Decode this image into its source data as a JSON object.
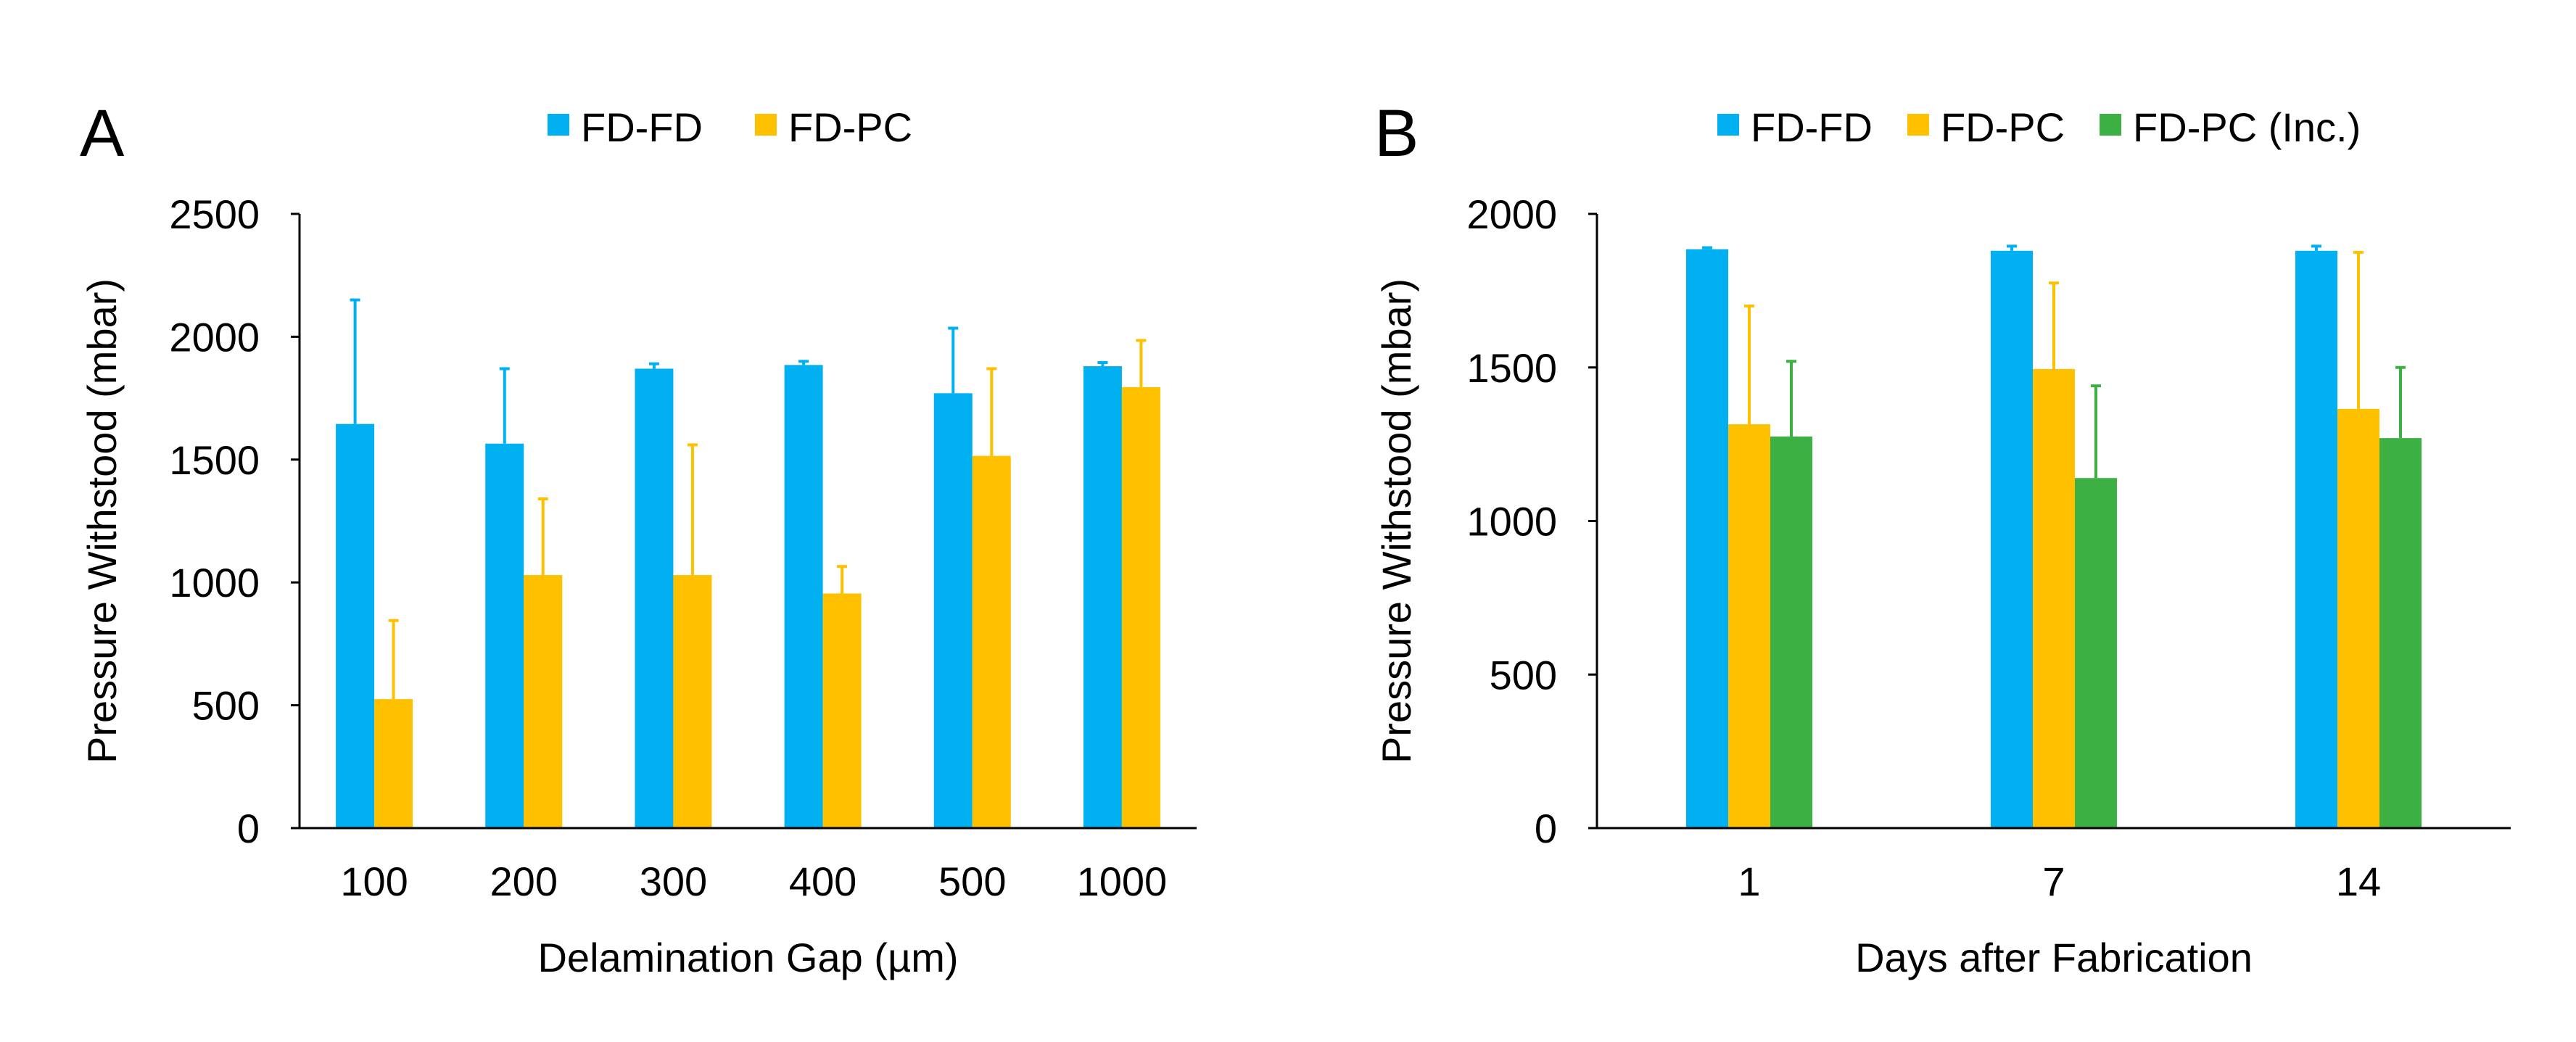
{
  "colors": {
    "FD-FD": "#00B0F0",
    "FD-PC": "#FFC000",
    "FD-PC (Inc.)": "#3CB043",
    "axis": "#000000"
  },
  "chart_data": [
    {
      "panel": "A",
      "type": "bar",
      "title": "",
      "xlabel": "Delamination Gap (µm)",
      "ylabel": "Pressure Withstood (mbar)",
      "ylim": [
        0,
        2500
      ],
      "yticks": [
        0,
        500,
        1000,
        1500,
        2000,
        2500
      ],
      "categories": [
        "100",
        "200",
        "300",
        "400",
        "500",
        "1000"
      ],
      "legend_position": "top-center",
      "grid": false,
      "series": [
        {
          "name": "FD-FD",
          "values": [
            1645,
            1565,
            1870,
            1885,
            1770,
            1880
          ],
          "errors": [
            505,
            305,
            20,
            15,
            265,
            15
          ]
        },
        {
          "name": "FD-PC",
          "values": [
            525,
            1030,
            1030,
            955,
            1515,
            1795
          ],
          "errors": [
            320,
            310,
            530,
            110,
            355,
            190
          ]
        }
      ]
    },
    {
      "panel": "B",
      "type": "bar",
      "title": "",
      "xlabel": "Days after Fabrication",
      "ylabel": "Pressure Withstood (mbar)",
      "ylim": [
        0,
        2000
      ],
      "yticks": [
        0,
        500,
        1000,
        1500,
        2000
      ],
      "categories": [
        "1",
        "7",
        "14"
      ],
      "legend_position": "top-center",
      "grid": false,
      "series": [
        {
          "name": "FD-FD",
          "values": [
            1885,
            1880,
            1880
          ],
          "errors": [
            5,
            15,
            15
          ]
        },
        {
          "name": "FD-PC",
          "values": [
            1315,
            1495,
            1365
          ],
          "errors": [
            385,
            280,
            510
          ]
        },
        {
          "name": "FD-PC (Inc.)",
          "values": [
            1275,
            1140,
            1270
          ],
          "errors": [
            245,
            300,
            230
          ]
        }
      ]
    }
  ]
}
